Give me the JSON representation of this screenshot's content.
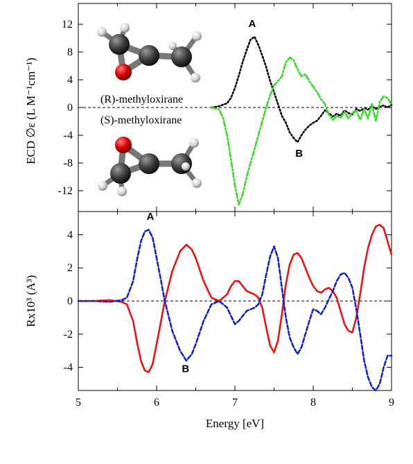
{
  "chart_data": [
    {
      "type": "line",
      "xlim": [
        5,
        9
      ],
      "ylim": [
        -15,
        15
      ],
      "yticks": [
        12,
        8,
        4,
        0,
        -4,
        -8,
        -12
      ],
      "ytick_labels": [
        "12",
        "8",
        "4",
        "0",
        "-4",
        "-8",
        "-12"
      ],
      "ylabel": "ECD ∅ε (L M⁻¹cm⁻¹)",
      "zero_line": true,
      "series": [
        {
          "name": "(R)-methyloxirane",
          "color": "#000000",
          "dash": "dotted",
          "x": [
            6.7,
            6.8,
            6.9,
            6.95,
            7.0,
            7.05,
            7.1,
            7.15,
            7.2,
            7.25,
            7.3,
            7.35,
            7.4,
            7.45,
            7.5,
            7.55,
            7.6,
            7.65,
            7.7,
            7.75,
            7.8,
            7.85,
            7.9,
            7.95,
            8.0,
            8.05,
            8.1,
            8.15,
            8.2,
            8.25,
            8.3,
            8.35,
            8.4,
            8.45,
            8.5,
            8.55,
            8.6,
            8.65,
            8.7,
            8.75,
            8.8,
            8.85,
            8.9,
            8.95,
            9.0
          ],
          "y": [
            0.0,
            0.2,
            0.6,
            1.4,
            2.8,
            4.6,
            6.6,
            8.3,
            9.8,
            10.2,
            9.0,
            7.5,
            5.8,
            3.8,
            2.2,
            0.5,
            -1.2,
            -2.2,
            -3.6,
            -4.4,
            -5.0,
            -4.0,
            -3.2,
            -2.6,
            -2.2,
            -1.9,
            -1.2,
            -0.4,
            -0.8,
            -1.3,
            -0.9,
            -1.2,
            -0.4,
            -0.8,
            -1.0,
            -0.2,
            -0.5,
            -0.1,
            -0.3,
            0.2,
            -0.2,
            0.1,
            0.3,
            0.0,
            0.4
          ]
        },
        {
          "name": "(S)-methyloxirane",
          "color": "#33dd22",
          "dash": "dash-dot",
          "x": [
            6.7,
            6.8,
            6.85,
            6.9,
            6.95,
            7.0,
            7.05,
            7.1,
            7.15,
            7.2,
            7.25,
            7.3,
            7.35,
            7.4,
            7.45,
            7.5,
            7.55,
            7.6,
            7.65,
            7.7,
            7.75,
            7.8,
            7.85,
            7.9,
            7.95,
            8.0,
            8.05,
            8.1,
            8.15,
            8.2,
            8.25,
            8.3,
            8.35,
            8.4,
            8.45,
            8.5,
            8.55,
            8.6,
            8.65,
            8.7,
            8.75,
            8.8,
            8.85,
            8.9,
            8.95,
            9.0
          ],
          "y": [
            0.0,
            -0.3,
            -1.5,
            -4.0,
            -7.5,
            -11.2,
            -14.0,
            -12.5,
            -10.0,
            -8.0,
            -6.0,
            -4.0,
            -2.0,
            0.0,
            1.8,
            3.2,
            3.8,
            4.5,
            6.5,
            7.2,
            6.8,
            5.5,
            4.5,
            4.8,
            3.8,
            3.0,
            2.2,
            1.2,
            0.5,
            -1.0,
            -1.8,
            -1.2,
            -1.5,
            -0.6,
            -1.6,
            -0.8,
            -0.4,
            -1.8,
            -0.2,
            -1.6,
            0.5,
            -2.0,
            0.8,
            1.6,
            1.4,
            0.4
          ]
        }
      ],
      "annotations": [
        {
          "text": "A",
          "x": 7.22,
          "y": 11.6
        },
        {
          "text": "B",
          "x": 7.82,
          "y": -7.1
        }
      ],
      "labels": [
        "(R)-methyloxirane",
        "(S)-methyloxirane"
      ]
    },
    {
      "type": "line",
      "xlim": [
        5,
        9
      ],
      "ylim": [
        -5.4,
        5.4
      ],
      "xticks": [
        5,
        6,
        7,
        8,
        9
      ],
      "xtick_labels": [
        "5",
        "6",
        "7",
        "8",
        "9"
      ],
      "yticks": [
        4,
        2,
        0,
        -2,
        -4
      ],
      "ytick_labels": [
        "4",
        "2",
        "0",
        "-2",
        "-4"
      ],
      "xlabel": "Energy [eV]",
      "ylabel": "Rx10³ (A³)",
      "zero_line": true,
      "series": [
        {
          "name": "(R)",
          "color": "#ee1111",
          "dash": "solid",
          "x": [
            5.0,
            5.2,
            5.4,
            5.55,
            5.62,
            5.7,
            5.75,
            5.8,
            5.85,
            5.9,
            5.95,
            6.0,
            6.05,
            6.1,
            6.2,
            6.3,
            6.38,
            6.45,
            6.5,
            6.6,
            6.7,
            6.8,
            6.9,
            6.95,
            7.0,
            7.05,
            7.1,
            7.15,
            7.2,
            7.25,
            7.3,
            7.35,
            7.4,
            7.45,
            7.5,
            7.55,
            7.6,
            7.65,
            7.7,
            7.75,
            7.8,
            7.85,
            7.9,
            7.95,
            8.0,
            8.05,
            8.1,
            8.15,
            8.2,
            8.25,
            8.3,
            8.35,
            8.4,
            8.45,
            8.5,
            8.55,
            8.6,
            8.65,
            8.7,
            8.75,
            8.8,
            8.85,
            8.9,
            8.95,
            9.0
          ],
          "y": [
            0.0,
            0.0,
            0.05,
            -0.05,
            -0.2,
            -1.2,
            -2.5,
            -3.6,
            -4.2,
            -4.3,
            -3.8,
            -2.6,
            -1.4,
            -0.1,
            1.8,
            3.0,
            3.4,
            3.1,
            2.6,
            1.2,
            0.2,
            0.0,
            0.4,
            0.9,
            1.2,
            1.2,
            0.9,
            0.6,
            0.5,
            0.4,
            0.2,
            -0.4,
            -1.6,
            -2.7,
            -3.1,
            -2.4,
            -0.8,
            1.0,
            2.2,
            2.8,
            2.9,
            2.6,
            2.0,
            1.4,
            0.9,
            0.6,
            0.5,
            0.7,
            0.8,
            0.6,
            0.2,
            -0.6,
            -1.4,
            -1.8,
            -1.9,
            -1.0,
            0.4,
            2.0,
            3.2,
            4.0,
            4.5,
            4.6,
            4.4,
            3.6,
            2.8
          ]
        },
        {
          "name": "(S)",
          "color": "#1122cc",
          "dash": "dashed",
          "x": [
            5.0,
            5.2,
            5.4,
            5.55,
            5.62,
            5.7,
            5.75,
            5.8,
            5.85,
            5.9,
            5.95,
            6.0,
            6.05,
            6.1,
            6.2,
            6.3,
            6.38,
            6.45,
            6.5,
            6.6,
            6.7,
            6.8,
            6.9,
            6.95,
            7.0,
            7.05,
            7.1,
            7.15,
            7.2,
            7.25,
            7.3,
            7.35,
            7.4,
            7.45,
            7.5,
            7.55,
            7.6,
            7.65,
            7.7,
            7.75,
            7.8,
            7.85,
            7.9,
            7.95,
            8.0,
            8.05,
            8.1,
            8.15,
            8.2,
            8.25,
            8.3,
            8.35,
            8.4,
            8.45,
            8.5,
            8.55,
            8.6,
            8.65,
            8.7,
            8.75,
            8.8,
            8.85,
            8.9,
            8.95,
            9.0
          ],
          "y": [
            0.0,
            0.0,
            -0.05,
            0.05,
            0.2,
            1.2,
            2.5,
            3.6,
            4.2,
            4.3,
            3.8,
            2.6,
            1.4,
            0.1,
            -1.8,
            -3.0,
            -3.6,
            -3.2,
            -2.6,
            -1.2,
            -0.2,
            0.0,
            -0.4,
            -0.9,
            -1.4,
            -1.2,
            -0.9,
            -0.6,
            -0.5,
            -0.4,
            -0.2,
            0.4,
            1.6,
            2.7,
            3.3,
            2.6,
            0.8,
            -1.0,
            -2.2,
            -2.8,
            -3.2,
            -2.8,
            -2.0,
            -1.2,
            -0.5,
            -0.6,
            -0.8,
            -0.4,
            0.1,
            0.6,
            1.2,
            1.6,
            1.7,
            1.4,
            0.8,
            -0.5,
            -2.0,
            -3.6,
            -4.6,
            -5.2,
            -5.4,
            -5.0,
            -4.0,
            -3.3,
            -3.3
          ]
        }
      ],
      "annotations": [
        {
          "text": "A",
          "x": 5.92,
          "y": 4.9
        },
        {
          "text": "B",
          "x": 6.37,
          "y": -4.3
        }
      ]
    }
  ],
  "molecule_colors": {
    "carbon": "#3a3a3a",
    "oxygen": "#dd0000",
    "hydrogen": "#e8e8e8",
    "bond": "#777777"
  }
}
